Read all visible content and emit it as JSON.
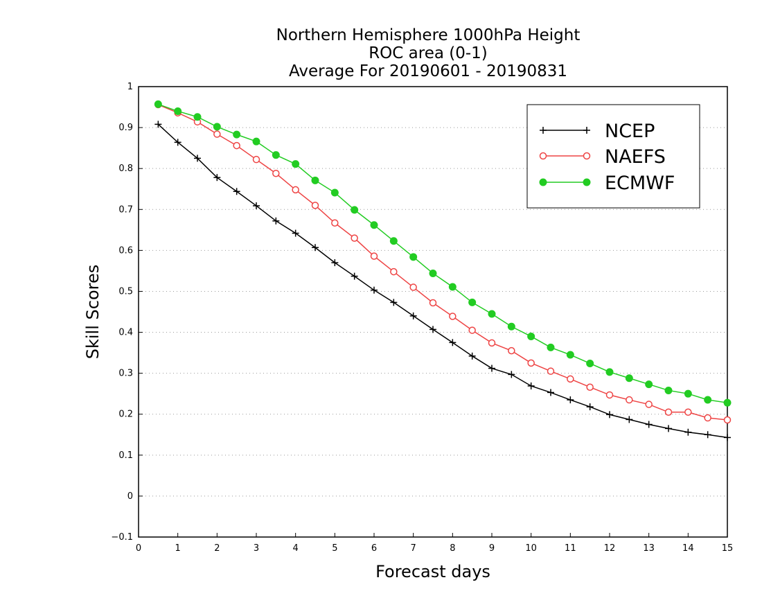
{
  "chart_data": {
    "type": "line",
    "title": [
      "Northern Hemisphere 1000hPa Height",
      "ROC area (0-1)",
      "Average For 20190601 - 20190831"
    ],
    "xlabel": "Forecast days",
    "ylabel": "Skill Scores",
    "xlim": [
      0,
      15
    ],
    "ylim": [
      -0.1,
      1
    ],
    "x_ticks": [
      "0",
      "1",
      "2",
      "3",
      "4",
      "5",
      "6",
      "7",
      "8",
      "9",
      "10",
      "11",
      "12",
      "13",
      "14",
      "15"
    ],
    "y_ticks": [
      "-0.1",
      "0",
      "0.1",
      "0.2",
      "0.3",
      "0.4",
      "0.5",
      "0.6",
      "0.7",
      "0.8",
      "0.9",
      "1"
    ],
    "grid": "horizontal dotted",
    "legend_position": "top-right",
    "x": [
      0.5,
      1,
      1.5,
      2,
      2.5,
      3,
      3.5,
      4,
      4.5,
      5,
      5.5,
      6,
      6.5,
      7,
      7.5,
      8,
      8.5,
      9,
      9.5,
      10,
      10.5,
      11,
      11.5,
      12,
      12.5,
      13,
      13.5,
      14,
      14.5,
      15
    ],
    "series": [
      {
        "name": "NCEP",
        "color": "#000000",
        "marker": "plus",
        "values": [
          0.908,
          0.864,
          0.825,
          0.778,
          0.744,
          0.709,
          0.672,
          0.642,
          0.607,
          0.57,
          0.537,
          0.503,
          0.473,
          0.44,
          0.407,
          0.375,
          0.342,
          0.312,
          0.297,
          0.269,
          0.253,
          0.235,
          0.218,
          0.199,
          0.187,
          0.175,
          0.165,
          0.156,
          0.15,
          0.143
        ]
      },
      {
        "name": "NAEFS",
        "color": "#ee4444",
        "marker": "open-circle",
        "values": [
          0.956,
          0.936,
          0.914,
          0.884,
          0.856,
          0.822,
          0.788,
          0.748,
          0.71,
          0.667,
          0.63,
          0.586,
          0.548,
          0.51,
          0.472,
          0.439,
          0.405,
          0.374,
          0.355,
          0.325,
          0.305,
          0.286,
          0.266,
          0.247,
          0.235,
          0.224,
          0.205,
          0.205,
          0.191,
          0.186
        ]
      },
      {
        "name": "ECMWF",
        "color": "#22cc22",
        "marker": "filled-circle",
        "values": [
          0.957,
          0.94,
          0.926,
          0.902,
          0.883,
          0.866,
          0.833,
          0.811,
          0.771,
          0.741,
          0.699,
          0.662,
          0.623,
          0.584,
          0.544,
          0.511,
          0.473,
          0.445,
          0.414,
          0.39,
          0.363,
          0.345,
          0.324,
          0.303,
          0.288,
          0.273,
          0.258,
          0.25,
          0.235,
          0.228
        ]
      }
    ]
  }
}
